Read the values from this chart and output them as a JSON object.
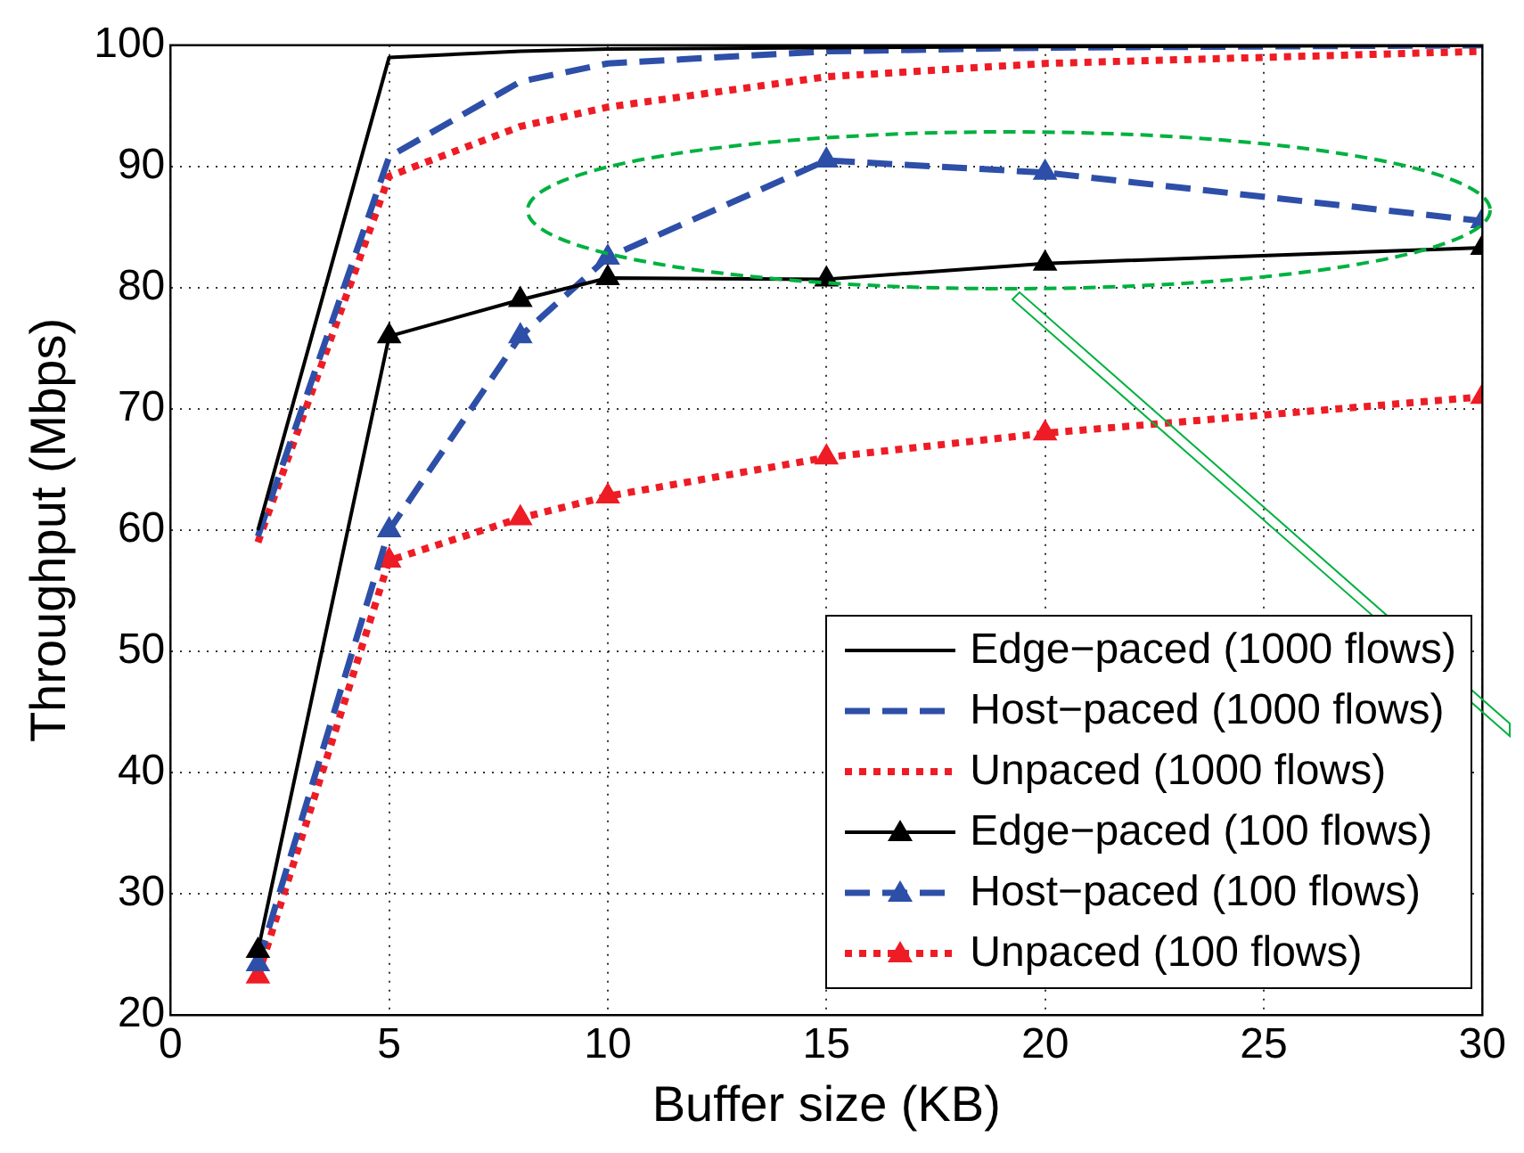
{
  "chart_data": {
    "type": "line",
    "xlabel": "Buffer size (KB)",
    "ylabel": "Throughput (Mbps)",
    "x": [
      2,
      5,
      8,
      10,
      15,
      20,
      30
    ],
    "xlim": [
      0,
      30
    ],
    "xticks": [
      0,
      5,
      10,
      15,
      20,
      25,
      30
    ],
    "ylim": [
      20,
      100
    ],
    "yticks": [
      20,
      30,
      40,
      50,
      60,
      70,
      80,
      90,
      100
    ],
    "grid": true,
    "legend": "bottom right",
    "series": [
      {
        "name": "Edge−paced (1000 flows)",
        "color": "#000000",
        "line_style": "solid",
        "marker": "none",
        "values": [
          60,
          99,
          99.5,
          99.7,
          99.8,
          99.9,
          100
        ]
      },
      {
        "name": "Host−paced (1000 flows)",
        "color": "#2e4fa8",
        "line_style": "dashed",
        "marker": "none",
        "values": [
          59.5,
          90.8,
          97,
          98.5,
          99.5,
          99.8,
          100
        ]
      },
      {
        "name": "Unpaced (1000 flows)",
        "color": "#ee1c25",
        "line_style": "dotted",
        "marker": "none",
        "values": [
          59,
          89.2,
          93.3,
          94.9,
          97.4,
          98.5,
          99.5
        ]
      },
      {
        "name": "Edge−paced (100 flows)",
        "color": "#000000",
        "line_style": "solid",
        "marker": "triangle",
        "values": [
          25.3,
          76,
          79,
          80.8,
          80.7,
          82,
          83.3
        ]
      },
      {
        "name": "Host−paced (100 flows)",
        "color": "#2e4fa8",
        "line_style": "dashed",
        "marker": "triangle",
        "values": [
          24.2,
          60,
          76,
          82.5,
          90.5,
          89.5,
          85.5
        ]
      },
      {
        "name": "Unpaced (100 flows)",
        "color": "#ee1c25",
        "line_style": "dotted",
        "marker": "triangle",
        "values": [
          23.2,
          57.5,
          61,
          62.8,
          66,
          68,
          71
        ]
      }
    ]
  }
}
